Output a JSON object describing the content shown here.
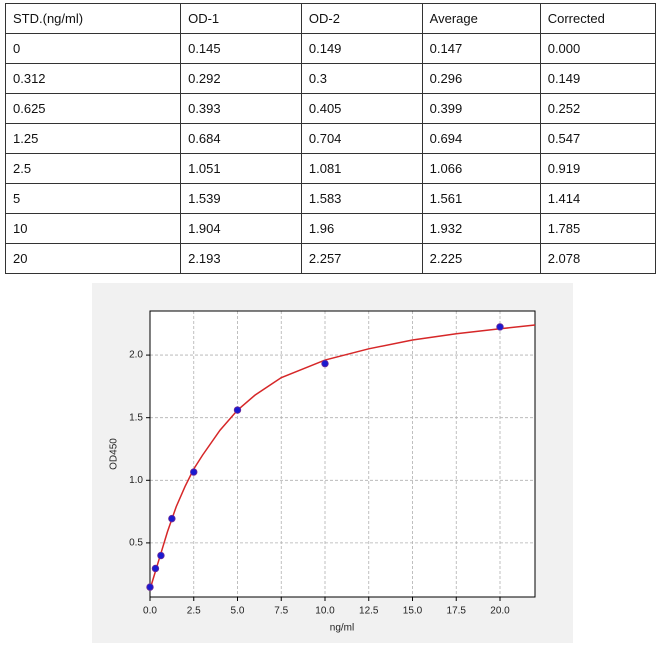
{
  "table": {
    "rows": [
      [
        "STD.(ng/ml)",
        "OD-1",
        "OD-2",
        "Average",
        "Corrected"
      ],
      [
        "0",
        "0.145",
        "0.149",
        "0.147",
        "0.000"
      ],
      [
        "0.312",
        "0.292",
        "0.3",
        "0.296",
        "0.149"
      ],
      [
        "0.625",
        "0.393",
        "0.405",
        "0.399",
        "0.252"
      ],
      [
        "1.25",
        "0.684",
        "0.704",
        "0.694",
        "0.547"
      ],
      [
        "2.5",
        "1.051",
        "1.081",
        "1.066",
        "0.919"
      ],
      [
        "5",
        "1.539",
        "1.583",
        "1.561",
        "1.414"
      ],
      [
        "10",
        "1.904",
        "1.96",
        "1.932",
        "1.785"
      ],
      [
        "20",
        "2.193",
        "2.257",
        "2.225",
        "2.078"
      ]
    ]
  },
  "chart_data": {
    "type": "scatter",
    "x_label": "ng/ml",
    "y_label": "OD450",
    "x": [
      0,
      0.312,
      0.625,
      1.25,
      2.5,
      5,
      10,
      20
    ],
    "values": [
      0.147,
      0.296,
      0.399,
      0.694,
      1.066,
      1.561,
      1.932,
      2.225
    ],
    "color": "#1a1ad0",
    "fit": {
      "color": "#d62728",
      "x": [
        0,
        0.5,
        1,
        1.5,
        2,
        2.5,
        3,
        4,
        5,
        6,
        7.5,
        10,
        12.5,
        15,
        17.5,
        20,
        22
      ],
      "values": [
        0.13,
        0.36,
        0.59,
        0.79,
        0.95,
        1.09,
        1.2,
        1.4,
        1.56,
        1.68,
        1.82,
        1.96,
        2.05,
        2.12,
        2.17,
        2.21,
        2.24
      ]
    },
    "xlim": [
      0,
      22
    ],
    "ylim": [
      0.068,
      2.352
    ],
    "xticks": [
      {
        "value": 0,
        "label": "0.0"
      },
      2.5,
      {
        "value": 5,
        "label": "5.0"
      },
      7.5,
      {
        "value": 10,
        "label": "10.0"
      },
      12.5,
      {
        "value": 15,
        "label": "15.0"
      },
      17.5,
      {
        "value": 20,
        "label": "20.0"
      }
    ],
    "yticks": [
      0.5,
      {
        "value": 1,
        "label": "1.0"
      },
      1.5,
      {
        "value": 2,
        "label": "2.0"
      }
    ],
    "grid": true
  }
}
